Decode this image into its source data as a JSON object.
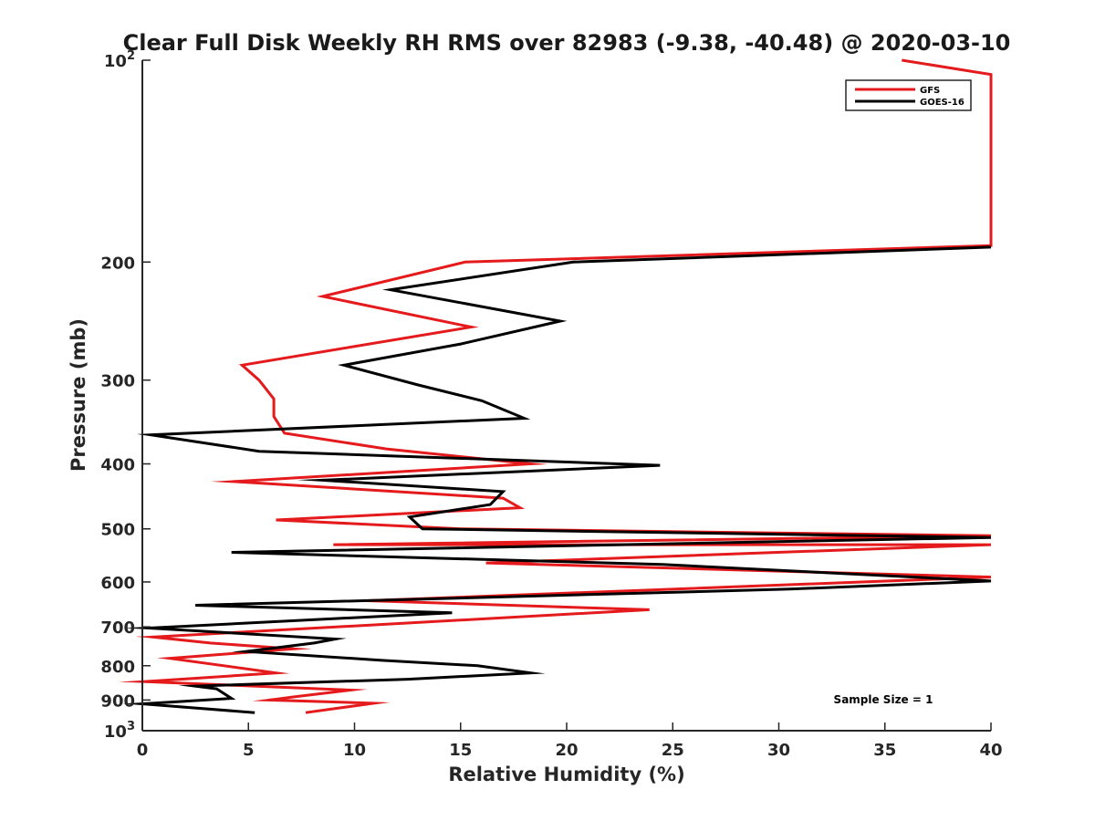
{
  "chart_data": {
    "type": "line",
    "title": "Clear Full Disk Weekly RH RMS over 82983 (-9.38, -40.48) @ 2020-03-10",
    "xlabel": "Relative Humidity (%)",
    "ylabel": "Pressure (mb)",
    "xlim": [
      0,
      40
    ],
    "ylim": [
      100,
      1000
    ],
    "y_scale": "log",
    "y_reversed": true,
    "x_ticks": [
      0,
      5,
      10,
      15,
      20,
      25,
      30,
      35,
      40
    ],
    "y_ticks": [
      {
        "value": 100,
        "base": "10",
        "exp": "2"
      },
      {
        "value": 200,
        "label": "200"
      },
      {
        "value": 300,
        "label": "300"
      },
      {
        "value": 400,
        "label": "400"
      },
      {
        "value": 500,
        "label": "500"
      },
      {
        "value": 600,
        "label": "600"
      },
      {
        "value": 700,
        "label": "700"
      },
      {
        "value": 800,
        "label": "800"
      },
      {
        "value": 900,
        "label": "900"
      },
      {
        "value": 1000,
        "base": "10",
        "exp": "3"
      }
    ],
    "legend": {
      "position": "top-right",
      "entries": [
        {
          "name": "GFS",
          "color": "#e41a1c"
        },
        {
          "name": "GOES-16",
          "color": "#000000"
        }
      ]
    },
    "annotation": "Sample Size = 1",
    "series": [
      {
        "name": "GFS",
        "color": "#e41a1c",
        "points": [
          [
            35.8,
            100
          ],
          [
            40.0,
            105
          ],
          [
            40.0,
            189
          ],
          [
            15.2,
            200
          ],
          [
            8.5,
            225
          ],
          [
            15.5,
            250
          ],
          [
            4.7,
            285
          ],
          [
            5.5,
            300
          ],
          [
            6.2,
            320
          ],
          [
            6.2,
            340
          ],
          [
            6.7,
            360
          ],
          [
            11.5,
            380
          ],
          [
            18.3,
            400
          ],
          [
            4.3,
            425
          ],
          [
            17.0,
            450
          ],
          [
            17.8,
            465
          ],
          [
            6.3,
            485
          ],
          [
            15.0,
            500
          ],
          [
            40.0,
            512
          ],
          [
            9.0,
            528
          ],
          [
            40.0,
            528
          ],
          [
            16.2,
            562
          ],
          [
            40.0,
            590
          ],
          [
            10.6,
            640
          ],
          [
            23.9,
            660
          ],
          [
            0.5,
            725
          ],
          [
            3.2,
            740
          ],
          [
            7.1,
            755
          ],
          [
            1.3,
            780
          ],
          [
            6.3,
            820
          ],
          [
            0.1,
            845
          ],
          [
            9.8,
            870
          ],
          [
            7.2,
            890
          ],
          [
            6.0,
            900
          ],
          [
            10.9,
            910
          ],
          [
            7.7,
            940
          ]
        ]
      },
      {
        "name": "GOES-16",
        "color": "#000000",
        "points": [
          [
            40.0,
            190
          ],
          [
            20.3,
            200
          ],
          [
            11.7,
            220
          ],
          [
            19.7,
            245
          ],
          [
            15.0,
            265
          ],
          [
            9.5,
            285
          ],
          [
            13.0,
            305
          ],
          [
            16.0,
            322
          ],
          [
            18.0,
            342
          ],
          [
            0.4,
            362
          ],
          [
            5.5,
            383
          ],
          [
            24.4,
            402
          ],
          [
            8.5,
            423
          ],
          [
            17.0,
            440
          ],
          [
            16.4,
            460
          ],
          [
            12.6,
            480
          ],
          [
            13.2,
            500
          ],
          [
            40.0,
            515
          ],
          [
            4.2,
            542
          ],
          [
            24.5,
            565
          ],
          [
            40.0,
            598
          ],
          [
            30.5,
            615
          ],
          [
            2.5,
            650
          ],
          [
            14.6,
            667
          ],
          [
            0.3,
            703
          ],
          [
            9.1,
            730
          ],
          [
            8.1,
            740
          ],
          [
            4.9,
            762
          ],
          [
            11.2,
            785
          ],
          [
            15.8,
            800
          ],
          [
            18.3,
            820
          ],
          [
            12.5,
            838
          ],
          [
            2.5,
            858
          ],
          [
            3.5,
            866
          ],
          [
            4.2,
            895
          ],
          [
            0.0,
            912
          ],
          [
            5.3,
            940
          ]
        ]
      }
    ]
  }
}
